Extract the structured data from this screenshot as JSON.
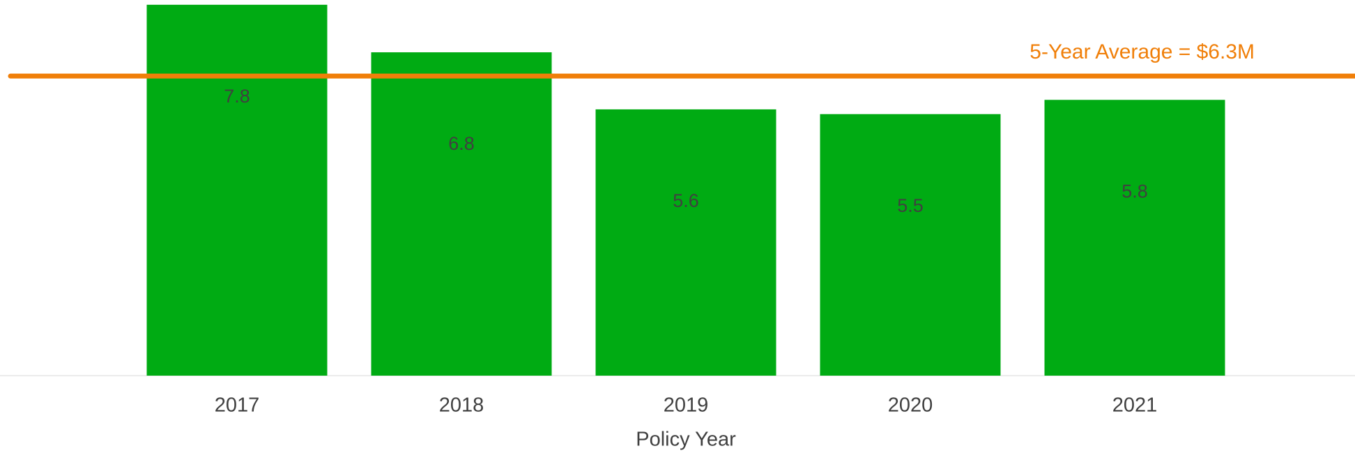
{
  "chart_data": {
    "type": "bar",
    "xlabel": "Policy Year",
    "categories": [
      "2017",
      "2018",
      "2019",
      "2020",
      "2021"
    ],
    "values": [
      7.8,
      6.8,
      5.6,
      5.5,
      5.8
    ],
    "color": "#00ab13",
    "ylim": [
      0,
      7.9
    ],
    "average": {
      "value": 6.3,
      "label": "5-Year Average = $6.3M",
      "color": "#f07f09"
    }
  }
}
